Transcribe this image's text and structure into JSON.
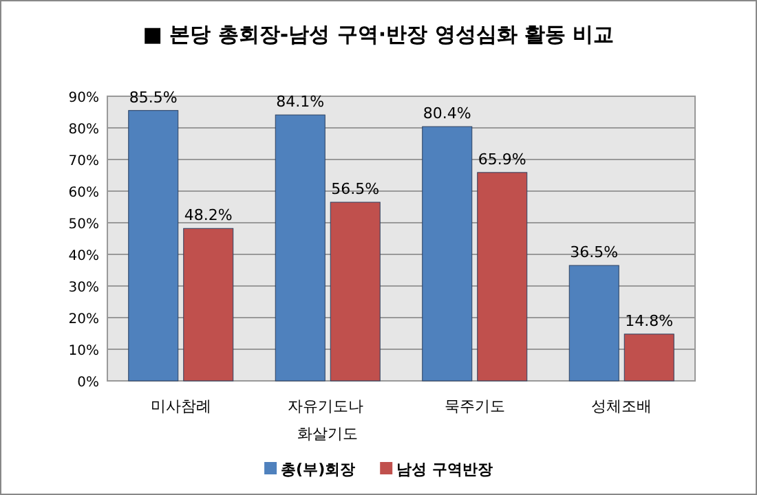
{
  "chart_data": {
    "type": "bar",
    "title": "■ 본당 총회장-남성 구역·반장 영성심화 활동 비교",
    "categories": [
      "미사참례",
      "자유기도나 화살기도",
      "묵주기도",
      "성체조배"
    ],
    "series": [
      {
        "name": "총(부)회장",
        "color": "#4f81bd",
        "values": [
          85.5,
          84.1,
          80.4,
          36.5
        ]
      },
      {
        "name": "남성 구역반장",
        "color": "#c0504d",
        "values": [
          48.2,
          56.5,
          65.9,
          14.8
        ]
      }
    ],
    "value_labels": [
      [
        "85.5%",
        "84.1%",
        "80.4%",
        "36.5%"
      ],
      [
        "48.2%",
        "56.5%",
        "65.9%",
        "14.8%"
      ]
    ],
    "ylim": [
      0,
      90
    ],
    "yticks": [
      {
        "value": 0,
        "label": "0%"
      },
      {
        "value": 10,
        "label": "10%"
      },
      {
        "value": 20,
        "label": "20%"
      },
      {
        "value": 30,
        "label": "30%"
      },
      {
        "value": 40,
        "label": "40%"
      },
      {
        "value": 50,
        "label": "50%"
      },
      {
        "value": 60,
        "label": "60%"
      },
      {
        "value": 70,
        "label": "70%"
      },
      {
        "value": 80,
        "label": "80%"
      },
      {
        "value": 90,
        "label": "90%"
      }
    ],
    "grid": "y",
    "legend": "bottom"
  }
}
